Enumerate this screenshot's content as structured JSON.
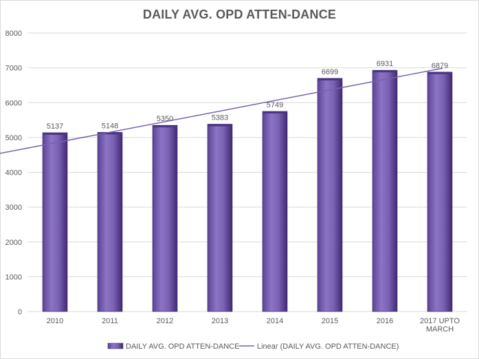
{
  "chart_data": {
    "type": "bar",
    "title": "DAILY AVG. OPD ATTEN-DANCE",
    "categories": [
      "2010",
      "2011",
      "2012",
      "2013",
      "2014",
      "2015",
      "2016",
      "2017 UPTO MARCH"
    ],
    "category_lines": [
      [
        "2010"
      ],
      [
        "2011"
      ],
      [
        "2012"
      ],
      [
        "2013"
      ],
      [
        "2014"
      ],
      [
        "2015"
      ],
      [
        "2016"
      ],
      [
        "2017 UPTO",
        "MARCH"
      ]
    ],
    "series": [
      {
        "name": "DAILY AVG. OPD ATTEN-DANCE",
        "values": [
          5137,
          5148,
          5350,
          5383,
          5749,
          6699,
          6931,
          6879
        ]
      }
    ],
    "data_labels": [
      "5137",
      "5148",
      "5350",
      "5383",
      "5749",
      "6699",
      "6931",
      "6879"
    ],
    "trendline": {
      "type": "linear",
      "name": "Linear (DAILY AVG. OPD ATTEN-DANCE)"
    },
    "ylim": [
      0,
      8000
    ],
    "y_ticks": [
      0,
      1000,
      2000,
      3000,
      4000,
      5000,
      6000,
      7000,
      8000
    ],
    "y_tick_labels": [
      "0",
      "1000",
      "2000",
      "3000",
      "4000",
      "5000",
      "6000",
      "7000",
      "8000"
    ],
    "grid": true,
    "legend_position": "bottom",
    "colors": {
      "bar": "#7b62b2",
      "bar_dark": "#3f2a73",
      "trend": "#7a5fad",
      "grid": "#d9d9d9",
      "text": "#595959"
    }
  }
}
